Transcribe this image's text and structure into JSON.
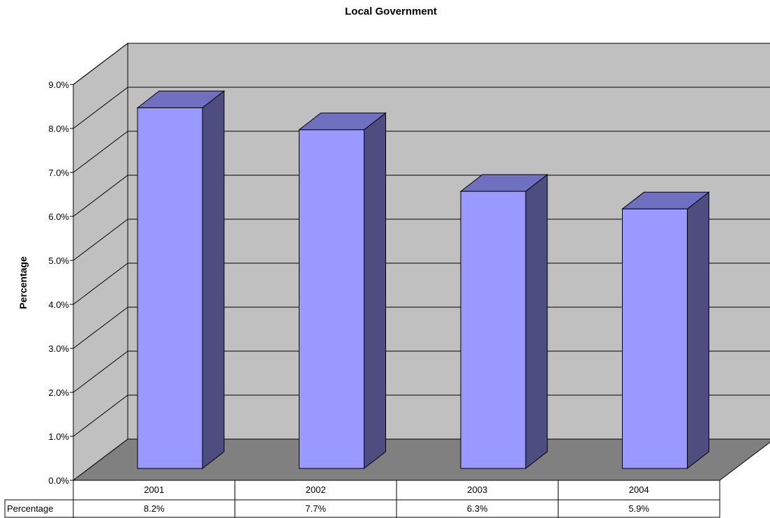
{
  "chart_data": {
    "type": "bar",
    "title": "Local Government",
    "ylabel": "Percentage",
    "xlabel": "",
    "categories": [
      "2001",
      "2002",
      "2003",
      "2004"
    ],
    "series": [
      {
        "name": "Percentage",
        "values": [
          8.2,
          7.7,
          6.3,
          5.9
        ],
        "labels": [
          "8.2%",
          "7.7%",
          "6.3%",
          "5.9%"
        ]
      }
    ],
    "ylim": [
      0,
      9
    ],
    "yticks": [
      "0.0%",
      "1.0%",
      "2.0%",
      "3.0%",
      "4.0%",
      "5.0%",
      "6.0%",
      "7.0%",
      "8.0%",
      "9.0%"
    ],
    "grid": true,
    "three_d": true,
    "data_table": true,
    "colors": {
      "bar_front": "#9999ff",
      "bar_top": "#7070c0",
      "bar_side": "#4d4d80",
      "wall": "#c0c0c0",
      "floor": "#808080"
    }
  }
}
